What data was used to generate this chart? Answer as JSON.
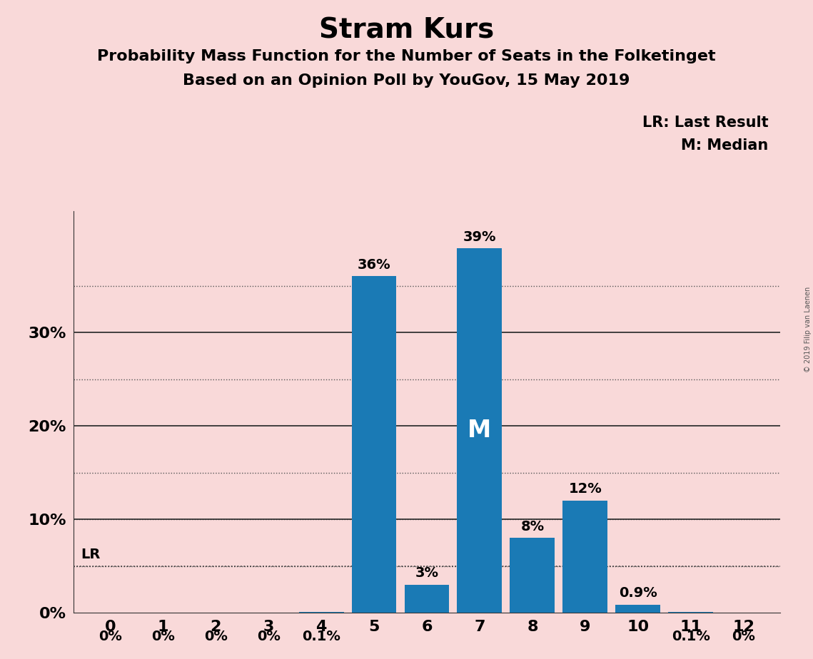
{
  "title": "Stram Kurs",
  "subtitle1": "Probability Mass Function for the Number of Seats in the Folketinget",
  "subtitle2": "Based on an Opinion Poll by YouGov, 15 May 2019",
  "categories": [
    0,
    1,
    2,
    3,
    4,
    5,
    6,
    7,
    8,
    9,
    10,
    11,
    12
  ],
  "values": [
    0.0,
    0.0,
    0.0,
    0.0,
    0.1,
    36.0,
    3.0,
    39.0,
    8.0,
    12.0,
    0.9,
    0.1,
    0.0
  ],
  "labels": [
    "0%",
    "0%",
    "0%",
    "0%",
    "0.1%",
    "36%",
    "3%",
    "39%",
    "8%",
    "12%",
    "0.9%",
    "0.1%",
    "0%"
  ],
  "bar_color": "#1a7ab5",
  "background_color": "#f9d9d9",
  "title_fontsize": 28,
  "subtitle_fontsize": 16,
  "bar_label_fontsize": 14,
  "axis_label_fontsize": 16,
  "ytick_labels": [
    "0%",
    "10%",
    "20%",
    "30%"
  ],
  "ytick_values": [
    0,
    10,
    20,
    30
  ],
  "ylim": [
    0,
    43
  ],
  "xlim": [
    -0.7,
    12.7
  ],
  "median_seat": 7,
  "median_label": "M",
  "lr_y": 5.0,
  "lr_label": "LR",
  "legend_text1": "LR: Last Result",
  "legend_text2": "M: Median",
  "copyright_text": "© 2019 Filip van Laenen",
  "dotted_lines": [
    5,
    10,
    15,
    25,
    35
  ],
  "solid_lines": [
    10,
    20,
    30
  ]
}
